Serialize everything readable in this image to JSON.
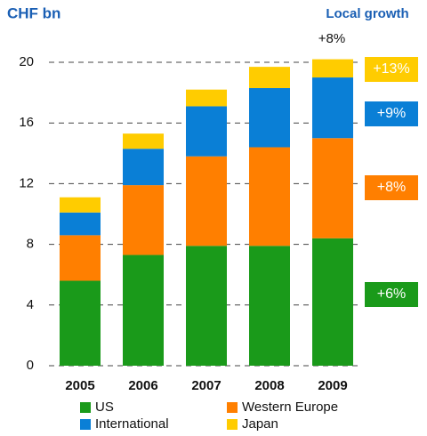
{
  "chart_data": {
    "type": "stacked_bar",
    "y_label": "CHF bn",
    "growth_title": "Local growth",
    "total_growth": "+8%",
    "categories": [
      "2005",
      "2006",
      "2007",
      "2008",
      "2009"
    ],
    "series": [
      {
        "name": "US",
        "color": "#1a9a1a",
        "values": [
          5.6,
          7.3,
          7.9,
          7.9,
          8.4
        ],
        "growth": "+6%"
      },
      {
        "name": "Western Europe",
        "color": "#ff7f00",
        "values": [
          3.0,
          4.6,
          5.9,
          6.5,
          6.6
        ],
        "growth": "+8%"
      },
      {
        "name": "International",
        "color": "#0a7fd6",
        "values": [
          1.5,
          2.4,
          3.3,
          3.9,
          4.0
        ],
        "growth": "+9%"
      },
      {
        "name": "Japan",
        "color": "#ffcc00",
        "values": [
          1.0,
          1.0,
          1.1,
          1.4,
          1.2
        ],
        "growth": "+13%"
      }
    ],
    "ylim": [
      0,
      20
    ],
    "yticks": [
      0,
      4,
      8,
      12,
      16,
      20
    ],
    "grid": true
  }
}
